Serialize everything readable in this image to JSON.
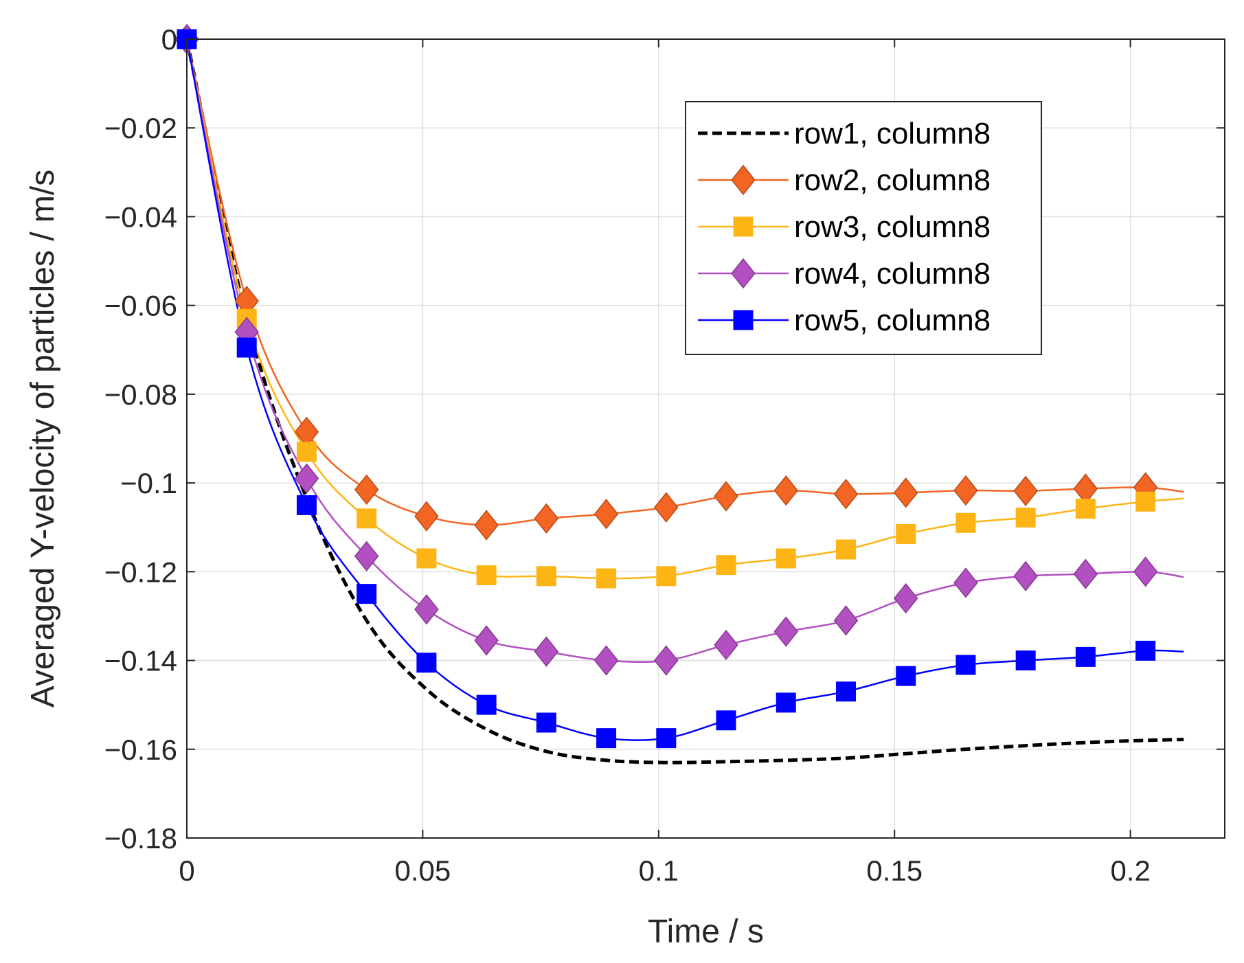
{
  "chart_data": {
    "type": "line",
    "xlabel": "Time / s",
    "ylabel": "Averaged Y-velocity of particles / m/s",
    "xlim": [
      0,
      0.22
    ],
    "ylim": [
      -0.18,
      0
    ],
    "xticks": [
      0,
      0.05,
      0.1,
      0.15,
      0.2
    ],
    "xtick_labels": [
      "0",
      "0.05",
      "0.1",
      "0.15",
      "0.2"
    ],
    "yticks": [
      0,
      -0.02,
      -0.04,
      -0.06,
      -0.08,
      -0.1,
      -0.12,
      -0.14,
      -0.16,
      -0.18
    ],
    "ytick_labels": [
      "0",
      "−0.02",
      "−0.04",
      "−0.06",
      "−0.08",
      "−0.1",
      "−0.12",
      "−0.14",
      "−0.16",
      "−0.18"
    ],
    "grid": true,
    "legend_position": "top-right",
    "series": [
      {
        "name": "row1, column8",
        "color": "#000000",
        "line_style": "dashed",
        "marker": "none",
        "x": [
          0,
          0.0127,
          0.0254,
          0.0381,
          0.0508,
          0.0635,
          0.0762,
          0.0889,
          0.1016,
          0.1143,
          0.127,
          0.1397,
          0.1524,
          0.1651,
          0.1778,
          0.1905,
          0.2032,
          0.2113
        ],
        "y": [
          0,
          -0.063,
          -0.1035,
          -0.131,
          -0.1465,
          -0.1555,
          -0.1605,
          -0.1625,
          -0.163,
          -0.1628,
          -0.1625,
          -0.162,
          -0.161,
          -0.16,
          -0.1592,
          -0.1585,
          -0.158,
          -0.1578
        ]
      },
      {
        "name": "row2, column8",
        "color": "#F26522",
        "line_style": "solid",
        "marker": "diamond",
        "x": [
          0,
          0.0127,
          0.0254,
          0.0381,
          0.0508,
          0.0635,
          0.0762,
          0.0889,
          0.1016,
          0.1143,
          0.127,
          0.1397,
          0.1524,
          0.1651,
          0.1778,
          0.1905,
          0.2032,
          0.2113
        ],
        "y": [
          0,
          -0.059,
          -0.0885,
          -0.1015,
          -0.1075,
          -0.1095,
          -0.108,
          -0.107,
          -0.1055,
          -0.103,
          -0.1017,
          -0.1025,
          -0.1022,
          -0.1017,
          -0.1018,
          -0.1013,
          -0.101,
          -0.102
        ]
      },
      {
        "name": "row3, column8",
        "color": "#FDB515",
        "line_style": "solid",
        "marker": "square",
        "x": [
          0,
          0.0127,
          0.0254,
          0.0381,
          0.0508,
          0.0635,
          0.0762,
          0.0889,
          0.1016,
          0.1143,
          0.127,
          0.1397,
          0.1524,
          0.1651,
          0.1778,
          0.1905,
          0.2032,
          0.2113
        ],
        "y": [
          0,
          -0.063,
          -0.093,
          -0.108,
          -0.117,
          -0.1208,
          -0.121,
          -0.1215,
          -0.121,
          -0.1185,
          -0.117,
          -0.115,
          -0.1115,
          -0.109,
          -0.1078,
          -0.1058,
          -0.1042,
          -0.1035
        ]
      },
      {
        "name": "row4, column8",
        "color": "#B24FC1",
        "line_style": "solid",
        "marker": "diamond",
        "x": [
          0,
          0.0127,
          0.0254,
          0.0381,
          0.0508,
          0.0635,
          0.0762,
          0.0889,
          0.1016,
          0.1143,
          0.127,
          0.1397,
          0.1524,
          0.1651,
          0.1778,
          0.1905,
          0.2032,
          0.2113
        ],
        "y": [
          0,
          -0.066,
          -0.099,
          -0.1165,
          -0.1285,
          -0.1355,
          -0.138,
          -0.14,
          -0.14,
          -0.1365,
          -0.1335,
          -0.131,
          -0.126,
          -0.1225,
          -0.121,
          -0.1205,
          -0.12,
          -0.1212
        ]
      },
      {
        "name": "row5, column8",
        "color": "#0000FF",
        "line_style": "solid",
        "marker": "square",
        "x": [
          0,
          0.0127,
          0.0254,
          0.0381,
          0.0508,
          0.0635,
          0.0762,
          0.0889,
          0.1016,
          0.1143,
          0.127,
          0.1397,
          0.1524,
          0.1651,
          0.1778,
          0.1905,
          0.2032,
          0.2113
        ],
        "y": [
          0,
          -0.0695,
          -0.105,
          -0.125,
          -0.1405,
          -0.15,
          -0.154,
          -0.1575,
          -0.1575,
          -0.1535,
          -0.1495,
          -0.147,
          -0.1435,
          -0.141,
          -0.14,
          -0.1392,
          -0.1378,
          -0.138
        ]
      }
    ]
  }
}
